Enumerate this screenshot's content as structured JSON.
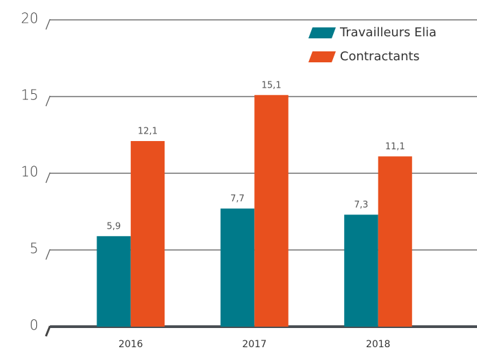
{
  "chart_data": {
    "type": "bar",
    "categories": [
      "2016",
      "2017",
      "2018"
    ],
    "series": [
      {
        "name": "Travailleurs Elia",
        "color": "#007a8a",
        "values": [
          5.9,
          7.7,
          7.3
        ],
        "value_labels": [
          "5,9",
          "7,7",
          "7,3"
        ]
      },
      {
        "name": "Contractants",
        "color": "#e8501e",
        "values": [
          12.1,
          15.1,
          11.1
        ],
        "value_labels": [
          "12,1",
          "15,1",
          "11,1"
        ]
      }
    ],
    "ylim": [
      0,
      20
    ],
    "yticks": [
      0,
      5,
      10,
      15,
      20
    ],
    "grid": true,
    "legend": "top-right"
  }
}
